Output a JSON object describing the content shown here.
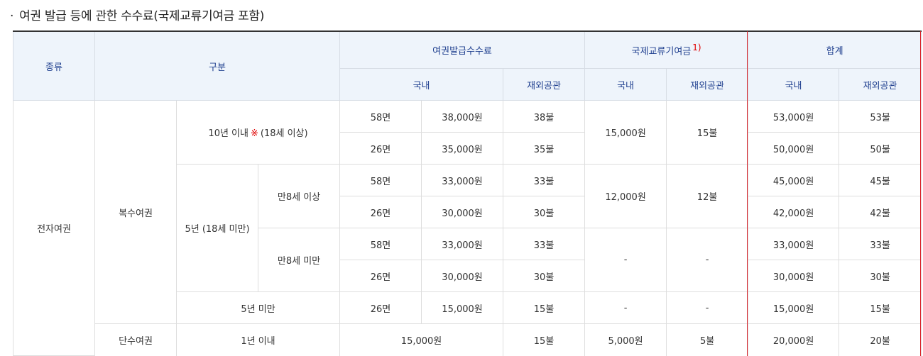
{
  "title": "여권 발급 등에 관한 수수료(국제교류기여금 포함)",
  "bullet": "·",
  "header": {
    "type": "종류",
    "category": "구분",
    "issue_fee": "여권발급수수료",
    "intl_fee": "국제교류기여금",
    "intl_fee_note": "1)",
    "total": "합계",
    "domestic": "국내",
    "overseas": "재외공관"
  },
  "rows": {
    "passport_type": "전자여권",
    "multi": "복수여권",
    "single": "단수여권",
    "ten_years": "10년 이내",
    "ten_years_mark": "※",
    "ten_years_note": "(18세 이상)",
    "five_years_minor": "5년 (18세 미만)",
    "age8_over": "만8세 이상",
    "age8_under": "만8세 미만",
    "under5": "5년 미만",
    "one_year": "1년 이내",
    "r1": {
      "pages": "58면",
      "dom": "38,000원",
      "ovs": "38불",
      "intl_dom": "15,000원",
      "intl_ovs": "15불",
      "tot_dom": "53,000원",
      "tot_ovs": "53불"
    },
    "r2": {
      "pages": "26면",
      "dom": "35,000원",
      "ovs": "35불",
      "tot_dom": "50,000원",
      "tot_ovs": "50불"
    },
    "r3": {
      "pages": "58면",
      "dom": "33,000원",
      "ovs": "33불",
      "intl_dom": "12,000원",
      "intl_ovs": "12불",
      "tot_dom": "45,000원",
      "tot_ovs": "45불"
    },
    "r4": {
      "pages": "26면",
      "dom": "30,000원",
      "ovs": "30불",
      "tot_dom": "42,000원",
      "tot_ovs": "42불"
    },
    "r5": {
      "pages": "58면",
      "dom": "33,000원",
      "ovs": "33불",
      "intl_dom": "-",
      "intl_ovs": "-",
      "tot_dom": "33,000원",
      "tot_ovs": "33불"
    },
    "r6": {
      "pages": "26면",
      "dom": "30,000원",
      "ovs": "30불",
      "tot_dom": "30,000원",
      "tot_ovs": "30불"
    },
    "r7": {
      "pages": "26면",
      "dom": "15,000원",
      "ovs": "15불",
      "intl_dom": "-",
      "intl_ovs": "-",
      "tot_dom": "15,000원",
      "tot_ovs": "15불"
    },
    "r8": {
      "dom": "15,000원",
      "ovs": "15불",
      "intl_dom": "5,000원",
      "intl_ovs": "5불",
      "tot_dom": "20,000원",
      "tot_ovs": "20불"
    }
  },
  "colors": {
    "header_bg": "#eef4fb",
    "header_text": "#1f3f8f",
    "highlight_border": "#d8232a",
    "note_red": "#e00000"
  }
}
